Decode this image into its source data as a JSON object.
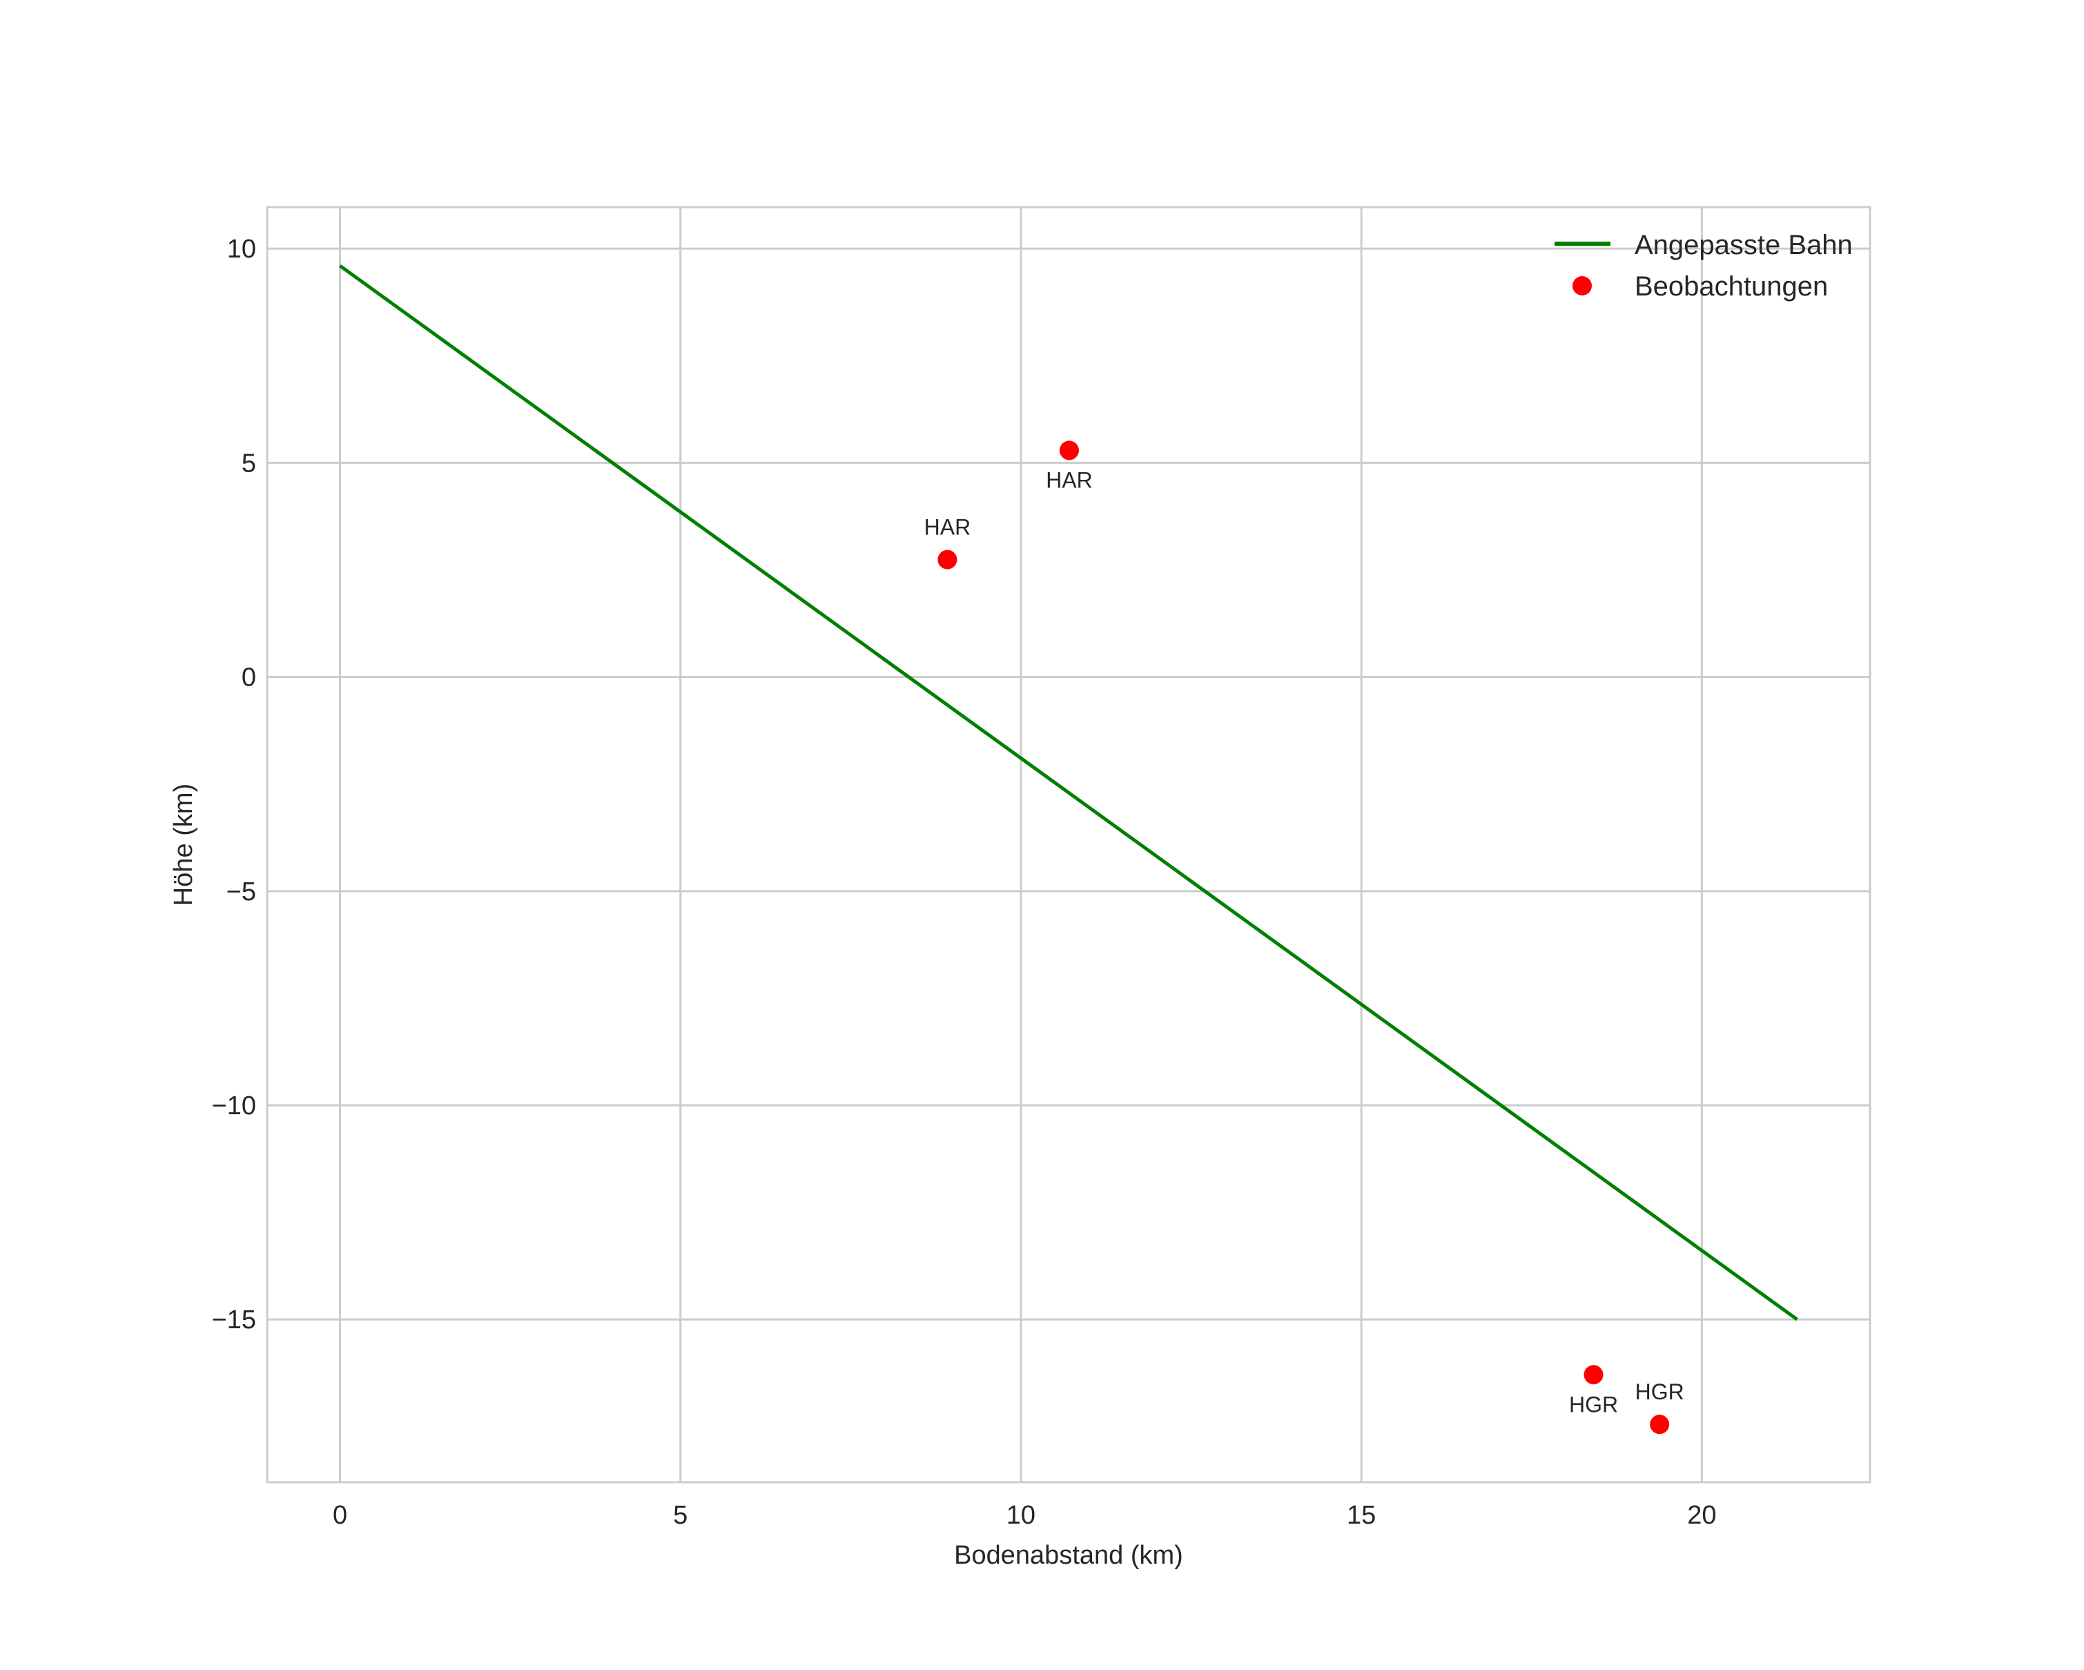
{
  "chart_data": {
    "type": "scatter",
    "title": "",
    "xlabel": "Bodenabstand (km)",
    "ylabel": "Höhe (km)",
    "xlim": [
      -1.07,
      22.47
    ],
    "ylim": [
      -18.8,
      10.97
    ],
    "xticks": [
      0,
      5,
      10,
      15,
      20
    ],
    "yticks": [
      -15,
      -10,
      -5,
      0,
      5,
      10
    ],
    "xtick_labels": [
      "0",
      "5",
      "10",
      "15",
      "20"
    ],
    "ytick_labels": [
      "−15",
      "−10",
      "−5",
      "0",
      "5",
      "10"
    ],
    "grid": true,
    "legend_position": "upper right",
    "series": [
      {
        "name": "Angepasste Bahn",
        "kind": "line",
        "color": "#008000",
        "x": [
          0,
          21.4
        ],
        "y": [
          9.6,
          -15.0
        ]
      },
      {
        "name": "Beobachtungen",
        "kind": "scatter",
        "color": "#ff0000",
        "points": [
          {
            "x": 8.92,
            "y": 2.74,
            "label": "HAR",
            "label_pos": "above"
          },
          {
            "x": 10.71,
            "y": 5.29,
            "label": "HAR",
            "label_pos": "below"
          },
          {
            "x": 18.41,
            "y": -16.29,
            "label": "HGR",
            "label_pos": "below"
          },
          {
            "x": 19.38,
            "y": -17.45,
            "label": "HGR",
            "label_pos": "above"
          }
        ]
      }
    ]
  },
  "legend": {
    "items": [
      {
        "label": "Angepasste Bahn",
        "symbol": "line",
        "color": "#008000"
      },
      {
        "label": "Beobachtungen",
        "symbol": "dot",
        "color": "#ff0000"
      }
    ]
  },
  "colors": {
    "grid": "#cccccc",
    "frame": "#cccccc",
    "text": "#262626"
  }
}
